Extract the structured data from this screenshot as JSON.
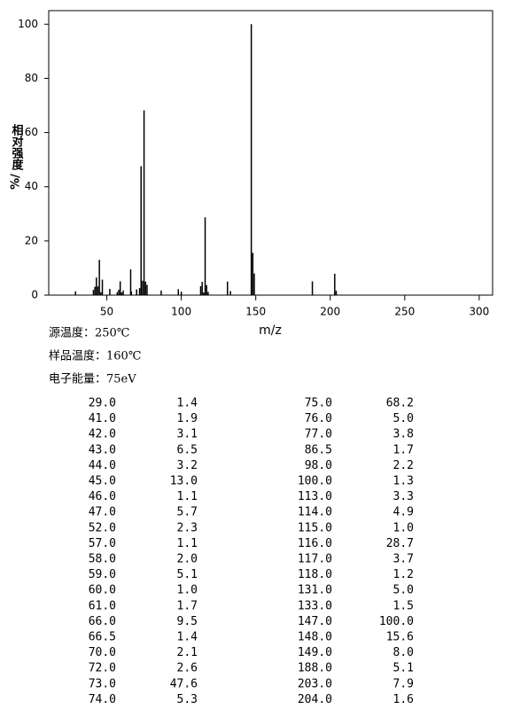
{
  "chart_data": {
    "type": "bar",
    "x_label": "m/z",
    "y_label": "相对强度",
    "y_label_unit": "%/",
    "xlim": [
      11,
      309
    ],
    "ylim": [
      0,
      105
    ],
    "xticks": [
      50,
      100,
      150,
      200,
      250,
      300
    ],
    "yticks": [
      0,
      20,
      40,
      60,
      80,
      100
    ],
    "color": "#000000",
    "x": [
      29.0,
      41.0,
      42.0,
      43.0,
      44.0,
      45.0,
      46.0,
      47.0,
      52.0,
      57.0,
      58.0,
      59.0,
      60.0,
      61.0,
      66.0,
      66.5,
      70.0,
      72.0,
      73.0,
      74.0,
      75.0,
      76.0,
      77.0,
      86.5,
      98.0,
      100.0,
      113.0,
      114.0,
      115.0,
      116.0,
      117.0,
      118.0,
      131.0,
      133.0,
      147.0,
      148.0,
      149.0,
      188.0,
      203.0,
      204.0
    ],
    "x_labels": [
      "29.0",
      "41.0",
      "42.0",
      "43.0",
      "44.0",
      "45.0",
      "46.0",
      "47.0",
      "52.0",
      "57.0",
      "58.0",
      "59.0",
      "60.0",
      "61.0",
      "66.0",
      "66.5",
      "70.0",
      "72.0",
      "73.0",
      "74.0",
      "75.0",
      "76.0",
      "77.0",
      "86.5",
      "98.0",
      "100.0",
      "113.0",
      "114.0",
      "115.0",
      "116.0",
      "117.0",
      "118.0",
      "131.0",
      "133.0",
      "147.0",
      "148.0",
      "149.0",
      "188.0",
      "203.0",
      "204.0"
    ],
    "values": [
      1.4,
      1.9,
      3.1,
      6.5,
      3.2,
      13.0,
      1.1,
      5.7,
      2.3,
      1.1,
      2.0,
      5.1,
      1.0,
      1.7,
      9.5,
      1.4,
      2.1,
      2.6,
      47.6,
      5.3,
      68.2,
      5.0,
      3.8,
      1.7,
      2.2,
      1.3,
      3.3,
      4.9,
      1.0,
      28.7,
      3.7,
      1.2,
      5.0,
      1.5,
      100.0,
      15.6,
      8.0,
      5.1,
      7.9,
      1.6
    ],
    "value_labels": [
      "1.4",
      "1.9",
      "3.1",
      "6.5",
      "3.2",
      "13.0",
      "1.1",
      "5.7",
      "2.3",
      "1.1",
      "2.0",
      "5.1",
      "1.0",
      "1.7",
      "9.5",
      "1.4",
      "2.1",
      "2.6",
      "47.6",
      "5.3",
      "68.2",
      "5.0",
      "3.8",
      "1.7",
      "2.2",
      "1.3",
      "3.3",
      "4.9",
      "1.0",
      "28.7",
      "3.7",
      "1.2",
      "5.0",
      "1.5",
      "100.0",
      "15.6",
      "8.0",
      "5.1",
      "7.9",
      "1.6"
    ]
  },
  "conditions": [
    "源温度：250℃",
    "样品温度：160℃",
    "电子能量：75eV"
  ]
}
